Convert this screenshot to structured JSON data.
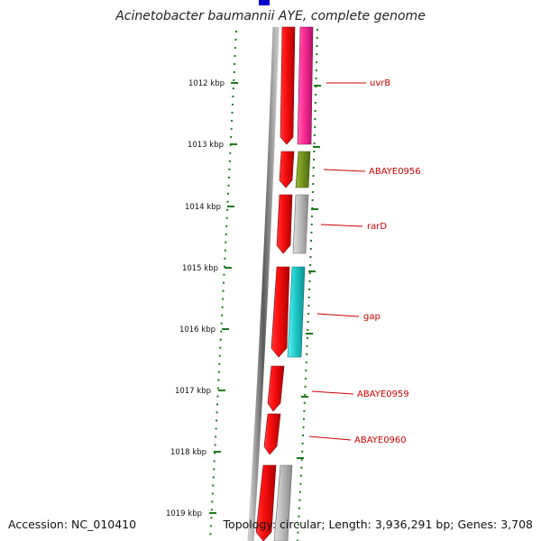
{
  "title": "Acinetobacter baumannii AYE, complete genome",
  "accession": {
    "label": "Accession:",
    "value": "NC_010410"
  },
  "summary": {
    "topology_label": "Topology:",
    "topology": "circular",
    "length_label": "Length:",
    "length": "3,936,291 bp",
    "genes_label": "Genes:",
    "genes": "3,708"
  },
  "colors": {
    "forward_gene": "#e00000",
    "feature_magenta": "#e0208a",
    "feature_olive": "#6b8c1a",
    "feature_gray": "#b0b0b0",
    "feature_cyan": "#20c8c8",
    "tick": "#1a7a1a",
    "label": "#cc0000",
    "backbone": "#888888",
    "top_marker": "#0000cc"
  },
  "ticks": [
    {
      "label": "1012 kbp"
    },
    {
      "label": "1013 kbp"
    },
    {
      "label": "1014 kbp"
    },
    {
      "label": "1015 kbp"
    },
    {
      "label": "1016 kbp"
    },
    {
      "label": "1017 kbp"
    },
    {
      "label": "1018 kbp"
    },
    {
      "label": "1019 kbp"
    }
  ],
  "gene_labels": [
    {
      "name": "uvrB"
    },
    {
      "name": "ABAYE0956"
    },
    {
      "name": "rarD"
    },
    {
      "name": "gap"
    },
    {
      "name": "ABAYE0959"
    },
    {
      "name": "ABAYE0960"
    }
  ]
}
